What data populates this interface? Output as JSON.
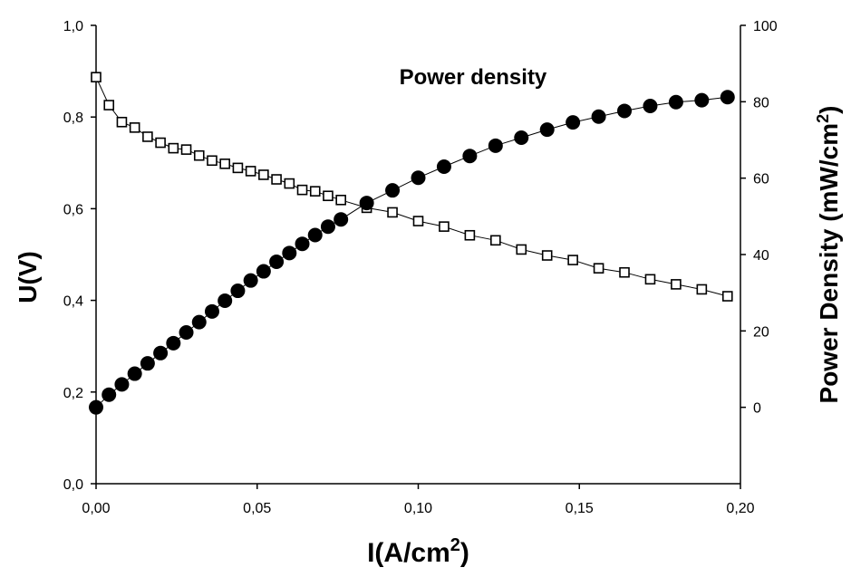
{
  "chart_data": {
    "type": "scatter",
    "title": "",
    "grid": false,
    "legend": "none",
    "x_axis": {
      "label_main": "I(A/cm",
      "label_sup": "2",
      "label_end": ")",
      "range": [
        0,
        0.2
      ],
      "ticks": [
        0,
        0.05,
        0.1,
        0.15,
        0.2
      ],
      "tick_labels": [
        "0,00",
        "0,05",
        "0,10",
        "0,15",
        "0,20"
      ]
    },
    "y_axis_left": {
      "label": "U(V)",
      "range": [
        0,
        1.0
      ],
      "ticks": [
        0,
        0.2,
        0.4,
        0.6,
        0.8,
        1.0
      ],
      "tick_labels": [
        "0,0",
        "0,2",
        "0,4",
        "0,6",
        "0,8",
        "1,0"
      ]
    },
    "y_axis_right": {
      "label_main": "Power Density (mW/cm",
      "label_sup": "2",
      "label_end": ")",
      "range": [
        -20,
        100
      ],
      "ticks": [
        0,
        20,
        40,
        60,
        80,
        100
      ],
      "tick_labels": [
        "0",
        "20",
        "40",
        "60",
        "80",
        "100"
      ]
    },
    "annotations": [
      {
        "text": "Power density",
        "x": 0.117,
        "y": 84.6,
        "axis": "right"
      }
    ],
    "series": [
      {
        "marker": "open-square",
        "axis": "left",
        "color": "#000000",
        "x": [
          0.0,
          0.004,
          0.008,
          0.012,
          0.016,
          0.02,
          0.024,
          0.028,
          0.032,
          0.036,
          0.04,
          0.044,
          0.048,
          0.052,
          0.056,
          0.06,
          0.064,
          0.068,
          0.072,
          0.076,
          0.084,
          0.092,
          0.1,
          0.108,
          0.116,
          0.124,
          0.132,
          0.14,
          0.148,
          0.156,
          0.164,
          0.172,
          0.18,
          0.188,
          0.196
        ],
        "y": [
          0.887,
          0.826,
          0.789,
          0.777,
          0.757,
          0.744,
          0.732,
          0.729,
          0.716,
          0.705,
          0.698,
          0.689,
          0.682,
          0.674,
          0.664,
          0.655,
          0.641,
          0.638,
          0.628,
          0.619,
          0.602,
          0.592,
          0.573,
          0.561,
          0.542,
          0.531,
          0.511,
          0.498,
          0.488,
          0.47,
          0.461,
          0.446,
          0.435,
          0.424,
          0.409
        ]
      },
      {
        "marker": "filled-circle",
        "axis": "right",
        "color": "#000000",
        "x": [
          0.0,
          0.004,
          0.008,
          0.012,
          0.016,
          0.02,
          0.024,
          0.028,
          0.032,
          0.036,
          0.04,
          0.044,
          0.048,
          0.052,
          0.056,
          0.06,
          0.064,
          0.068,
          0.072,
          0.076,
          0.084,
          0.092,
          0.1,
          0.108,
          0.116,
          0.124,
          0.132,
          0.14,
          0.148,
          0.156,
          0.164,
          0.172,
          0.18,
          0.188,
          0.196
        ],
        "y": [
          0.0,
          3.3,
          6.0,
          8.8,
          11.5,
          14.2,
          16.8,
          19.6,
          22.3,
          25.1,
          27.9,
          30.5,
          33.2,
          35.6,
          38.1,
          40.4,
          42.8,
          45.1,
          47.3,
          49.2,
          53.5,
          56.8,
          60.1,
          63.0,
          65.8,
          68.5,
          70.6,
          72.7,
          74.6,
          76.1,
          77.6,
          78.9,
          79.9,
          80.4,
          81.2
        ]
      }
    ]
  }
}
